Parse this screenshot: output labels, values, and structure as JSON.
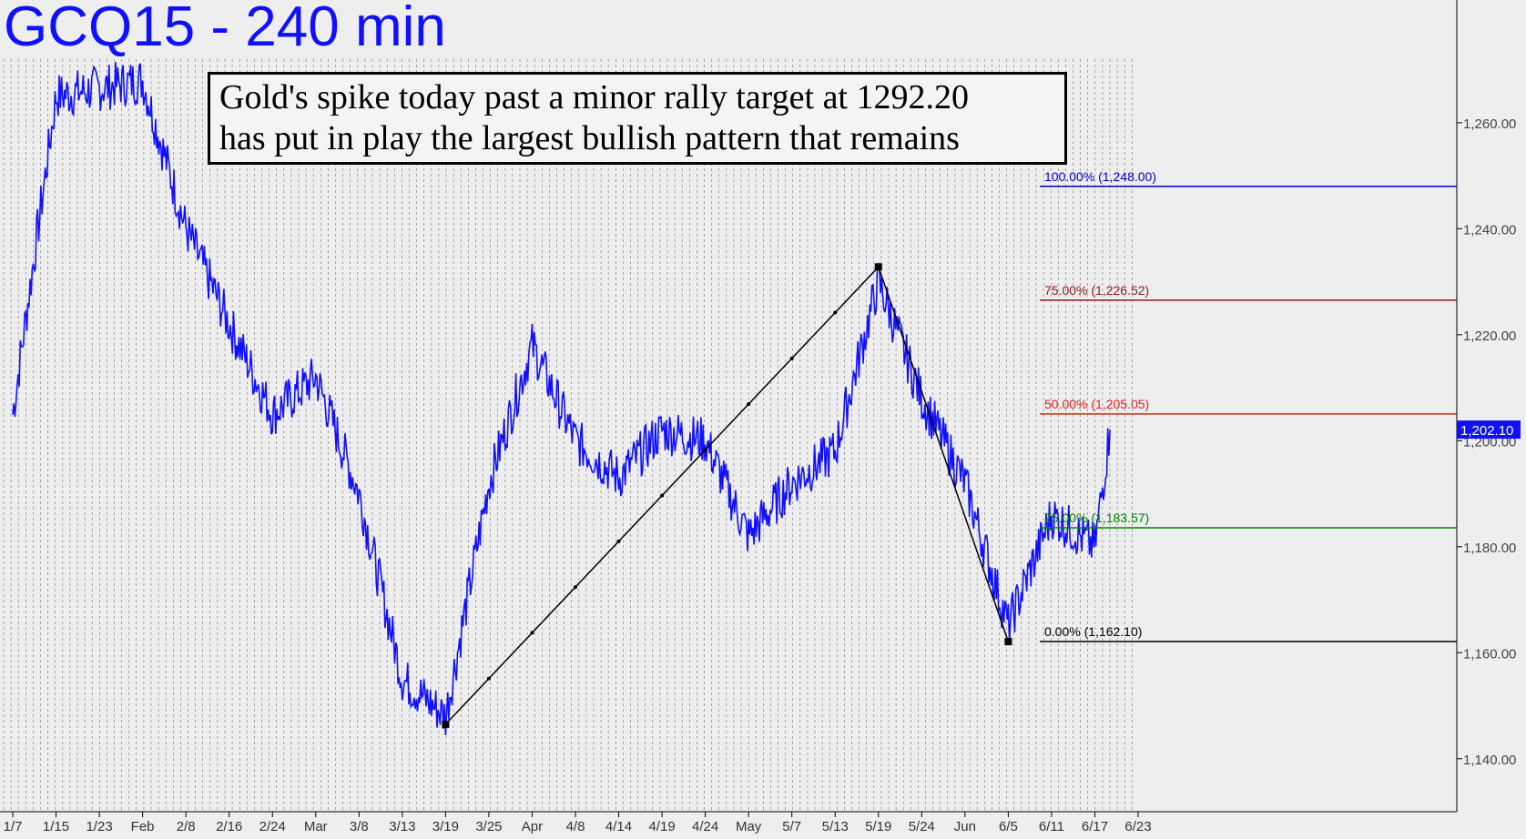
{
  "title": "GCQ15 - 240 min",
  "annotation": {
    "line1": "Gold's spike today past a minor rally target at 1292.20",
    "line2": "has put in play the largest bullish pattern that remains"
  },
  "colors": {
    "price": "#1010ff",
    "title": "#1010ff",
    "fib_100": "#0000cc",
    "fib_75": "#8b1a1a",
    "fib_50": "#e02020",
    "fib_25": "#008000",
    "fib_0": "#000000",
    "background": "#eeeeee"
  },
  "chart_data": {
    "type": "line",
    "title": "GCQ15 - 240 min",
    "ylim": [
      1130,
      1272
    ],
    "y_ticks": [
      1140,
      1160,
      1180,
      1200,
      1220,
      1240,
      1260
    ],
    "y_tick_labels": [
      "1,140.00",
      "1,160.00",
      "1,180.00",
      "1,200.00",
      "1,220.00",
      "1,240.00",
      "1,260.00"
    ],
    "x_tick_labels": [
      "1/7",
      "1/15",
      "1/23",
      "Feb",
      "2/8",
      "2/16",
      "2/24",
      "Mar",
      "3/8",
      "3/13",
      "3/19",
      "3/25",
      "Apr",
      "4/8",
      "4/14",
      "4/19",
      "4/24",
      "May",
      "5/7",
      "5/13",
      "5/19",
      "5/24",
      "Jun",
      "6/5",
      "6/11",
      "6/17",
      "6/23"
    ],
    "last_price": 1202.1,
    "last_price_label": "1,202.10",
    "series": [
      {
        "x": [
          "1/7",
          "1/15",
          "Feb",
          "2/8",
          "2/16",
          "2/24",
          "Mar",
          "3/8",
          "3/13",
          "3/19",
          "3/25",
          "Apr",
          "4/8",
          "4/14",
          "4/19",
          "4/24",
          "May",
          "5/7",
          "5/13",
          "5/19",
          "5/24",
          "Jun",
          "6/5",
          "6/11",
          "6/17",
          "6/19"
        ],
        "values": [
          1205,
          1265,
          1268,
          1240,
          1222,
          1205,
          1212,
          1190,
          1155,
          1148,
          1192,
          1218,
          1200,
          1193,
          1202,
          1200,
          1182,
          1192,
          1198,
          1230,
          1208,
          1192,
          1165,
          1186,
          1180,
          1202.1
        ]
      }
    ],
    "pattern_points": [
      {
        "x": "3/19",
        "value": 1146.5
      },
      {
        "x": "5/19",
        "value": 1232.8
      },
      {
        "x": "6/5",
        "value": 1162.1
      }
    ],
    "fib_levels": [
      {
        "label": "100.00% (1,248.00)",
        "value": 1248.0
      },
      {
        "label": "75.00% (1,226.52)",
        "value": 1226.52
      },
      {
        "label": "50.00% (1,205.05)",
        "value": 1205.05
      },
      {
        "label": "25.00% (1,183.57)",
        "value": 1183.57
      },
      {
        "label": "0.00% (1,162.10)",
        "value": 1162.1
      }
    ]
  }
}
